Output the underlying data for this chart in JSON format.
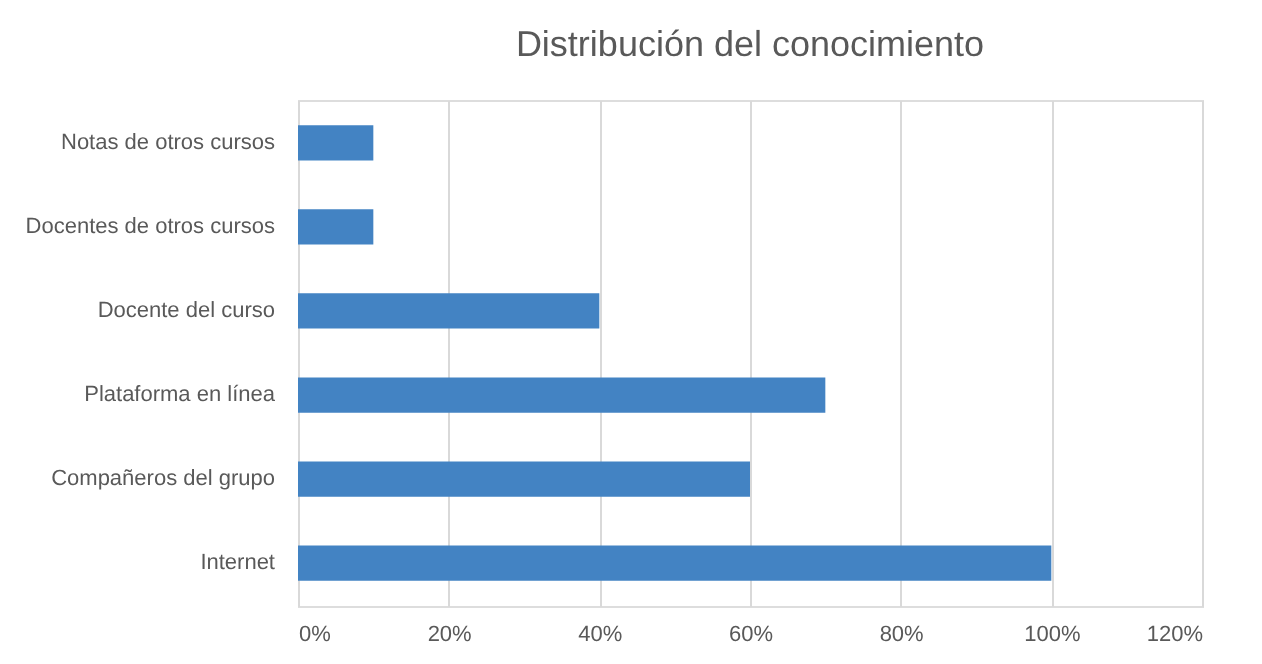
{
  "chart_data": {
    "type": "bar",
    "orientation": "horizontal",
    "title": "Distribución del conocimiento",
    "categories": [
      "Notas de otros cursos",
      "Docentes de otros cursos",
      "Docente del curso",
      "Plataforma en línea",
      "Compañeros del grupo",
      "Internet"
    ],
    "values": [
      10,
      10,
      40,
      70,
      60,
      100
    ],
    "color": "#4383c3",
    "xlim": [
      0,
      120
    ],
    "xticks": [
      {
        "value": 0,
        "label": "0%"
      },
      {
        "value": 20,
        "label": "20%"
      },
      {
        "value": 40,
        "label": "40%"
      },
      {
        "value": 60,
        "label": "60%"
      },
      {
        "value": 80,
        "label": "80%"
      },
      {
        "value": 100,
        "label": "100%"
      },
      {
        "value": 120,
        "label": "120%"
      }
    ],
    "grid": "x"
  }
}
